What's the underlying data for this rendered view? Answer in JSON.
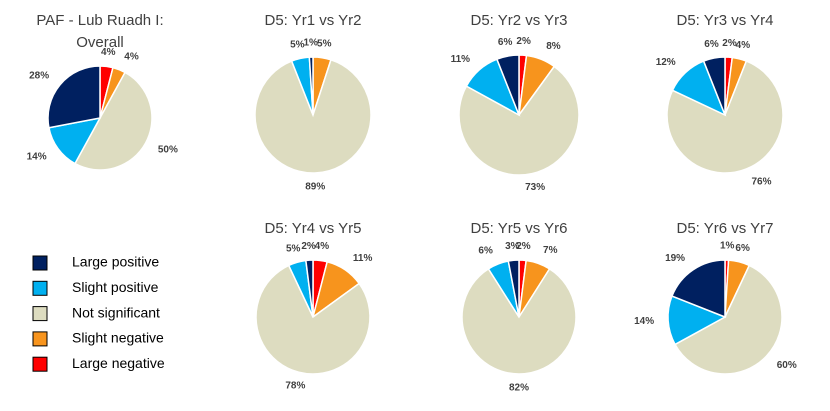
{
  "chart_data": [
    {
      "type": "pie",
      "title": "PAF - Lub Ruadh I: Overall",
      "categories": [
        "Large positive",
        "Slight positive",
        "Not significant",
        "Slight negative",
        "Large negative"
      ],
      "colors": [
        "#002060",
        "#00b0f0",
        "#dddcc0",
        "#f7941d",
        "#ff0000"
      ],
      "values": [
        28,
        14,
        50,
        4,
        4
      ],
      "value_labels": [
        "28%",
        "14%",
        "50%",
        "4%",
        "4%"
      ]
    },
    {
      "type": "pie",
      "title": "D5: Yr1 vs Yr2",
      "values": [
        1,
        5,
        89,
        5,
        0
      ],
      "value_labels": [
        "1%",
        "5%",
        "89%",
        "5%",
        null
      ]
    },
    {
      "type": "pie",
      "title": "D5: Yr2 vs Yr3",
      "values": [
        6,
        11,
        73,
        8,
        2
      ],
      "value_labels": [
        "6%",
        "11%",
        "73%",
        "8%",
        "2%"
      ]
    },
    {
      "type": "pie",
      "title": "D5: Yr3 vs Yr4",
      "values": [
        6,
        12,
        76,
        4,
        2
      ],
      "value_labels": [
        "6%",
        "12%",
        "76%",
        "4%",
        "2%"
      ]
    },
    {
      "type": "pie",
      "title": "D5: Yr4 vs Yr5",
      "values": [
        2,
        5,
        78,
        11,
        4
      ],
      "value_labels": [
        "2%",
        "5%",
        "78%",
        "11%",
        "4%"
      ]
    },
    {
      "type": "pie",
      "title": "D5: Yr5 vs Yr6",
      "values": [
        3,
        6,
        82,
        7,
        2
      ],
      "value_labels": [
        "3%",
        "6%",
        "82%",
        "7%",
        "2%"
      ]
    },
    {
      "type": "pie",
      "title": "D5: Yr6 vs Yr7",
      "values": [
        19,
        14,
        60,
        6,
        1
      ],
      "value_labels": [
        "19%",
        "14%",
        "60%",
        "6%",
        "1%"
      ]
    }
  ]
}
